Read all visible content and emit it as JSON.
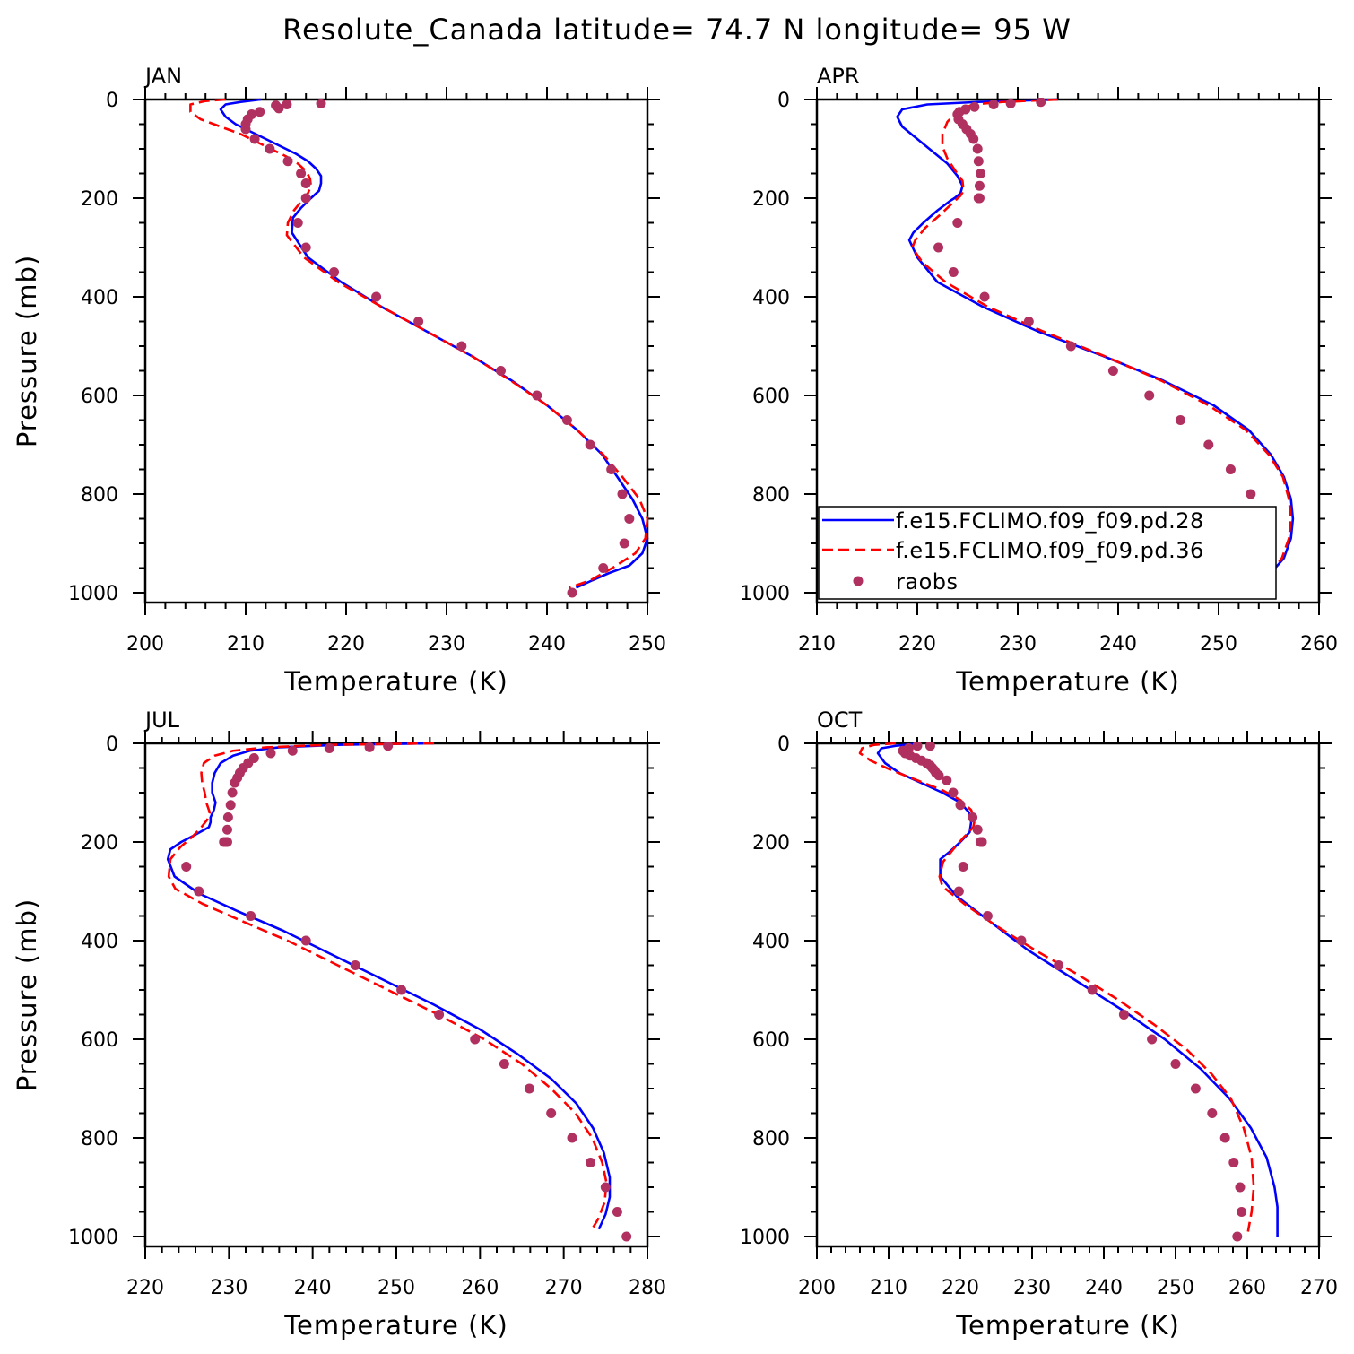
{
  "title": "Resolute_Canada  latitude= 74.7 N longitude= 95 W",
  "colors": {
    "model_28": "#0000ff",
    "model_36": "#ff0000",
    "raobs": "#b03060"
  },
  "chart_data": [
    {
      "type": "line",
      "panel": "JAN",
      "xlabel": "Temperature (K)",
      "ylabel": "Pressure (mb)",
      "xlim": [
        200,
        250
      ],
      "ylim": [
        1020,
        0
      ],
      "xticks": [
        "200",
        "210",
        "220",
        "230",
        "240",
        "250"
      ],
      "yticks": [
        "0",
        "200",
        "400",
        "600",
        "800",
        "1000"
      ],
      "series": [
        {
          "name": "f.e15.FCLIMO.f09_f09.pd.28",
          "style": "solid",
          "x": [
            211.5,
            209.5,
            208,
            207.5,
            208,
            209,
            210.5,
            212,
            213.5,
            215,
            216.2,
            217,
            217.5,
            217.5,
            217.3,
            216.5,
            215.5,
            214.7,
            214.6,
            216.2,
            219.5,
            223.5,
            228,
            232.5,
            236.5,
            240,
            243,
            245.5,
            247,
            248.5,
            249.5,
            250,
            249.5,
            248.2,
            246.2,
            244.5,
            242.9
          ],
          "y": [
            0,
            5,
            10,
            20,
            35,
            50,
            65,
            80,
            95,
            110,
            125,
            140,
            155,
            170,
            185,
            200,
            220,
            240,
            270,
            320,
            370,
            420,
            470,
            520,
            570,
            620,
            670,
            720,
            765,
            810,
            850,
            890,
            920,
            945,
            960,
            975,
            990
          ]
        },
        {
          "name": "f.e15.FCLIMO.f09_f09.pd.36",
          "style": "dashed",
          "x": [
            208,
            206,
            204.5,
            204.5,
            205.5,
            207.5,
            209.5,
            211,
            212.5,
            214,
            215.2,
            216,
            216.4,
            216.5,
            216.2,
            215.6,
            214.8,
            214.2,
            214.1,
            215.8,
            219.2,
            223.5,
            228,
            232.5,
            236.4,
            240,
            243,
            245.6,
            247.5,
            249.2,
            250,
            249.8,
            248.8,
            246.5,
            244.3,
            242.2
          ],
          "y": [
            0,
            3,
            10,
            25,
            40,
            55,
            70,
            85,
            100,
            115,
            130,
            145,
            160,
            175,
            190,
            205,
            225,
            250,
            275,
            320,
            370,
            420,
            470,
            520,
            570,
            620,
            670,
            720,
            765,
            810,
            850,
            890,
            920,
            950,
            975,
            990
          ]
        },
        {
          "name": "raobs",
          "style": "dots",
          "x": [
            217.5,
            214.1,
            213,
            213.3,
            211.4,
            210.6,
            210.2,
            210,
            210,
            210.9,
            212.4,
            214.2,
            215.5,
            216,
            216,
            215.2,
            216,
            218.8,
            223,
            227.2,
            231.5,
            235.4,
            239,
            242,
            244.3,
            246.4,
            247.5,
            248.2,
            247.7,
            245.6,
            242.5
          ],
          "y": [
            8,
            10,
            12,
            18,
            25,
            30,
            40,
            50,
            60,
            80,
            100,
            125,
            150,
            170,
            200,
            250,
            300,
            350,
            400,
            450,
            500,
            550,
            600,
            650,
            700,
            750,
            800,
            850,
            900,
            950,
            1000
          ]
        }
      ]
    },
    {
      "type": "line",
      "panel": "APR",
      "xlabel": "Temperature (K)",
      "ylabel": "",
      "xlim": [
        210,
        260
      ],
      "ylim": [
        1020,
        0
      ],
      "xticks": [
        "210",
        "220",
        "230",
        "240",
        "250",
        "260"
      ],
      "yticks": [
        "0",
        "200",
        "400",
        "600",
        "800",
        "1000"
      ],
      "series": [
        {
          "name": "f.e15.FCLIMO.f09_f09.pd.28",
          "style": "solid",
          "x": [
            234,
            226,
            221,
            218.5,
            218,
            218.5,
            220,
            221.5,
            223,
            224,
            224.5,
            224.3,
            223.7,
            223.3,
            222,
            220.6,
            219.6,
            219.2,
            220,
            222,
            226.5,
            232,
            238.5,
            244.5,
            249.5,
            253,
            255.2,
            256.5,
            257.2,
            257.4,
            257.2,
            256.5,
            255.2,
            254
          ],
          "y": [
            0,
            5,
            10,
            20,
            35,
            55,
            80,
            105,
            130,
            155,
            175,
            190,
            200,
            205,
            225,
            250,
            270,
            285,
            320,
            370,
            420,
            470,
            520,
            570,
            620,
            670,
            720,
            765,
            810,
            850,
            890,
            930,
            960,
            990
          ]
        },
        {
          "name": "f.e15.FCLIMO.f09_f09.pd.36",
          "style": "dashed",
          "x": [
            234,
            228.5,
            225.5,
            224,
            223,
            222.5,
            222.5,
            223,
            223.8,
            224.5,
            224.6,
            224.3,
            223.5,
            222.2,
            220.8,
            219.8,
            219.5,
            220.5,
            222.8,
            227,
            232.5,
            238.6,
            244.3,
            249,
            252.7,
            255,
            256.4,
            257,
            257.2,
            257,
            256.3,
            255.2,
            253.8
          ],
          "y": [
            0,
            5,
            10,
            25,
            45,
            70,
            95,
            120,
            145,
            165,
            185,
            195,
            210,
            235,
            260,
            285,
            300,
            330,
            370,
            420,
            470,
            520,
            570,
            620,
            670,
            720,
            765,
            810,
            850,
            890,
            930,
            960,
            990
          ]
        },
        {
          "name": "raobs",
          "style": "dots",
          "x": [
            232.3,
            229.3,
            227.6,
            225.7,
            224.8,
            224.2,
            224,
            224.1,
            224.5,
            224.9,
            225.3,
            225.6,
            226,
            226.1,
            226.3,
            226.2,
            226.2,
            226.1,
            224,
            222.1,
            223.6,
            226.7,
            231.1,
            235.3,
            239.5,
            243.1,
            246.2,
            249,
            251.2,
            253.2,
            253.6,
            254.3,
            254.3,
            253.2,
            251
          ],
          "y": [
            5,
            8,
            10,
            15,
            20,
            25,
            30,
            40,
            50,
            60,
            70,
            80,
            100,
            125,
            150,
            175,
            200,
            200,
            250,
            300,
            350,
            400,
            450,
            500,
            550,
            600,
            650,
            700,
            750,
            800,
            850,
            850,
            900,
            950,
            1000
          ]
        }
      ]
    },
    {
      "type": "line",
      "panel": "JUL",
      "xlabel": "Temperature (K)",
      "ylabel": "Pressure (mb)",
      "xlim": [
        220,
        280
      ],
      "ylim": [
        1020,
        0
      ],
      "xticks": [
        "220",
        "230",
        "240",
        "250",
        "260",
        "270",
        "280"
      ],
      "yticks": [
        "0",
        "200",
        "400",
        "600",
        "800",
        "1000"
      ],
      "series": [
        {
          "name": "f.e15.FCLIMO.f09_f09.pd.28",
          "style": "solid",
          "x": [
            254.5,
            243,
            236,
            232.5,
            230.5,
            229,
            228.3,
            228,
            228,
            228.4,
            228.2,
            227.8,
            227.8,
            227.6,
            226,
            224.3,
            223,
            222.7,
            223.5,
            226.5,
            231,
            236.5,
            242.5,
            248.5,
            254.5,
            260,
            264.5,
            268.5,
            271.5,
            273.5,
            274.8,
            275.5,
            275.5,
            275,
            274.2
          ],
          "y": [
            0,
            3,
            8,
            15,
            25,
            40,
            60,
            80,
            100,
            120,
            135,
            150,
            160,
            170,
            185,
            200,
            215,
            235,
            270,
            305,
            340,
            380,
            430,
            480,
            530,
            580,
            630,
            680,
            730,
            780,
            830,
            880,
            920,
            955,
            985
          ]
        },
        {
          "name": "f.e15.FCLIMO.f09_f09.pd.36",
          "style": "dashed",
          "x": [
            254.5,
            242,
            234.5,
            230.5,
            228.3,
            227,
            226.7,
            226.8,
            227.1,
            227.3,
            227.7,
            227.4,
            226.7,
            225.6,
            224.2,
            223,
            222.8,
            223.6,
            226.8,
            231.5,
            237,
            243,
            249,
            255,
            260.5,
            265,
            268.5,
            271.4,
            273.4,
            274.6,
            275.1,
            274.9,
            274.1,
            273.2
          ],
          "y": [
            0,
            3,
            8,
            15,
            25,
            40,
            60,
            80,
            100,
            120,
            140,
            155,
            170,
            190,
            210,
            235,
            270,
            295,
            325,
            360,
            400,
            450,
            500,
            550,
            600,
            650,
            700,
            750,
            800,
            850,
            890,
            930,
            965,
            990
          ]
        },
        {
          "name": "raobs",
          "style": "dots",
          "x": [
            249,
            246.8,
            242,
            237.6,
            235,
            233,
            232.3,
            231.7,
            231.3,
            231,
            230.7,
            230.4,
            230.2,
            229.9,
            229.8,
            229.7,
            229.7,
            229.8,
            229.4,
            224.9,
            226.4,
            232.6,
            239.2,
            245.1,
            250.6,
            255.1,
            259.4,
            262.9,
            265.9,
            268.5,
            271,
            273.2,
            275,
            276.4,
            277.5
          ],
          "y": [
            5,
            8,
            10,
            15,
            20,
            30,
            40,
            50,
            60,
            70,
            80,
            100,
            125,
            150,
            175,
            200,
            200,
            200,
            200,
            250,
            300,
            350,
            400,
            450,
            500,
            550,
            600,
            650,
            700,
            750,
            800,
            850,
            900,
            950,
            1000
          ]
        }
      ]
    },
    {
      "type": "line",
      "panel": "OCT",
      "xlabel": "Temperature (K)",
      "ylabel": "",
      "xlim": [
        200,
        270
      ],
      "ylim": [
        1020,
        0
      ],
      "xticks": [
        "200",
        "210",
        "220",
        "230",
        "240",
        "250",
        "260",
        "270"
      ],
      "yticks": [
        "0",
        "200",
        "400",
        "600",
        "800",
        "1000"
      ],
      "series": [
        {
          "name": "f.e15.FCLIMO.f09_f09.pd.28",
          "style": "solid",
          "x": [
            214.5,
            211,
            209,
            208.5,
            209.5,
            211.5,
            214.5,
            217.5,
            220,
            221.2,
            221.5,
            221.3,
            220,
            218.5,
            217.2,
            217.2,
            219.5,
            224,
            229.5,
            236,
            242.5,
            248.5,
            253.5,
            257.5,
            260.5,
            262.7,
            263.8,
            264.2,
            264.2,
            264.2
          ],
          "y": [
            0,
            5,
            10,
            20,
            40,
            60,
            80,
            100,
            120,
            140,
            160,
            180,
            200,
            220,
            235,
            270,
            310,
            360,
            420,
            480,
            540,
            600,
            660,
            720,
            780,
            840,
            900,
            940,
            980,
            1000
          ]
        },
        {
          "name": "f.e15.FCLIMO.f09_f09.pd.36",
          "style": "dashed",
          "x": [
            211,
            208,
            206.3,
            206,
            207.5,
            210.5,
            214,
            217.5,
            220,
            221.5,
            222,
            221.8,
            220.5,
            219,
            217.6,
            217.1,
            217.5,
            220.5,
            225,
            230.5,
            236.5,
            242,
            247,
            251.5,
            255,
            257.7,
            259.5,
            260.6,
            260.9,
            260.6,
            260.1
          ],
          "y": [
            0,
            3,
            10,
            20,
            35,
            55,
            75,
            95,
            115,
            135,
            155,
            170,
            190,
            215,
            240,
            270,
            290,
            325,
            370,
            420,
            470,
            520,
            570,
            620,
            670,
            720,
            780,
            840,
            900,
            950,
            990
          ]
        },
        {
          "name": "raobs",
          "style": "dots",
          "x": [
            215.8,
            214,
            212.8,
            212,
            212.3,
            213,
            213.8,
            214.6,
            215.3,
            215.8,
            216.1,
            216.4,
            216.6,
            217,
            218.1,
            219,
            220,
            221.7,
            222.4,
            222.8,
            223,
            223,
            220.4,
            219.8,
            223.8,
            228.5,
            233.7,
            238.4,
            242.8,
            246.7,
            250,
            252.8,
            255.1,
            256.9,
            258.1,
            259,
            259.2,
            258.6
          ],
          "y": [
            5,
            5,
            10,
            15,
            20,
            25,
            30,
            35,
            40,
            45,
            50,
            55,
            60,
            65,
            75,
            100,
            125,
            150,
            175,
            200,
            200,
            200,
            250,
            300,
            350,
            400,
            450,
            500,
            550,
            600,
            650,
            700,
            750,
            800,
            850,
            900,
            950,
            1000
          ]
        }
      ]
    }
  ]
}
